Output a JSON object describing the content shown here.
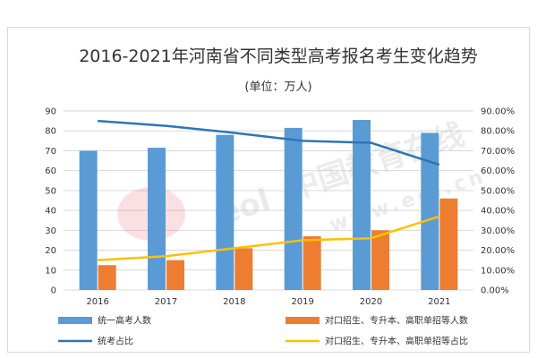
{
  "chart_data": {
    "type": "bar",
    "title": "2016-2021年河南省不同类型高考报名考生变化趋势",
    "subtitle": "(单位：万人)",
    "categories": [
      "2016",
      "2017",
      "2018",
      "2019",
      "2020",
      "2021"
    ],
    "series": [
      {
        "name": "统一高考人数",
        "type": "bar",
        "axis": "left",
        "color": "#5b9bd5",
        "values": [
          70.0,
          71.5,
          78.0,
          81.5,
          85.5,
          79.0
        ]
      },
      {
        "name": "对口招生、专升本、高职单招等人数",
        "type": "bar",
        "axis": "left",
        "color": "#ed7d31",
        "values": [
          12.5,
          15.0,
          21.0,
          27.0,
          30.0,
          46.0
        ]
      },
      {
        "name": "统考占比",
        "type": "line",
        "axis": "right",
        "color": "#2e75b6",
        "values": [
          0.85,
          0.825,
          0.79,
          0.75,
          0.74,
          0.63
        ]
      },
      {
        "name": "对口招生、专升本、高职单招等占比",
        "type": "line",
        "axis": "right",
        "color": "#ffc000",
        "values": [
          0.15,
          0.17,
          0.21,
          0.25,
          0.26,
          0.37
        ]
      }
    ],
    "y_left": {
      "ylim": [
        0,
        90
      ],
      "ticks": [
        "0",
        "10",
        "20",
        "30",
        "40",
        "50",
        "60",
        "70",
        "80",
        "90"
      ]
    },
    "y_right": {
      "ylim": [
        0,
        0.9
      ],
      "ticks": [
        "0.00%",
        "10.00%",
        "20.00%",
        "30.00%",
        "40.00%",
        "50.00%",
        "60.00%",
        "70.00%",
        "80.00%",
        "90.00%"
      ]
    },
    "grid": true,
    "legend_position": "bottom",
    "watermark": {
      "text": "中国教育在线",
      "url": "www.eol.cn",
      "logo": "eol"
    }
  }
}
